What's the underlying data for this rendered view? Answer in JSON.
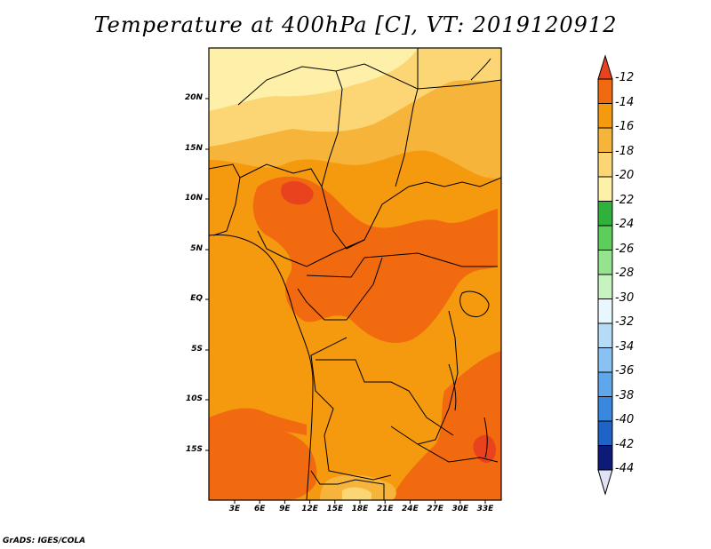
{
  "title": "Temperature at 400hPa [C], VT: 2019120912",
  "credit": "GrADS: IGES/COLA",
  "colors": {
    "c_m12_up": "#e8421e",
    "c_m14": "#f26a10",
    "c_m16": "#f5990f",
    "c_m18": "#f7b43a",
    "c_m20": "#fcd674",
    "c_m22": "#fef0a8",
    "c_m24": "#2fb23c",
    "c_m26": "#5dce5a",
    "c_m28": "#96e38f",
    "c_m30": "#c6f3c0",
    "c_m32": "#e8f7fd",
    "c_m34": "#b5dcf7",
    "c_m36": "#89c2f2",
    "c_m38": "#5fa6ec",
    "c_m40": "#3a87e0",
    "c_m42": "#1f62c8",
    "c_m44": "#1244a6",
    "c_low": "#0e1a78",
    "c_min": "#e2e2f5",
    "border": "#000000"
  },
  "map": {
    "lat_labels": [
      "20N",
      "15N",
      "10N",
      "5N",
      "EQ",
      "5S",
      "10S",
      "15S"
    ],
    "lon_labels": [
      "3E",
      "6E",
      "9E",
      "12E",
      "15E",
      "18E",
      "21E",
      "24E",
      "27E",
      "30E",
      "33E"
    ]
  },
  "colorbar": {
    "labels": [
      "-12",
      "-14",
      "-16",
      "-18",
      "-20",
      "-22",
      "-24",
      "-26",
      "-28",
      "-30",
      "-32",
      "-34",
      "-36",
      "-38",
      "-40",
      "-42",
      "-44"
    ]
  }
}
